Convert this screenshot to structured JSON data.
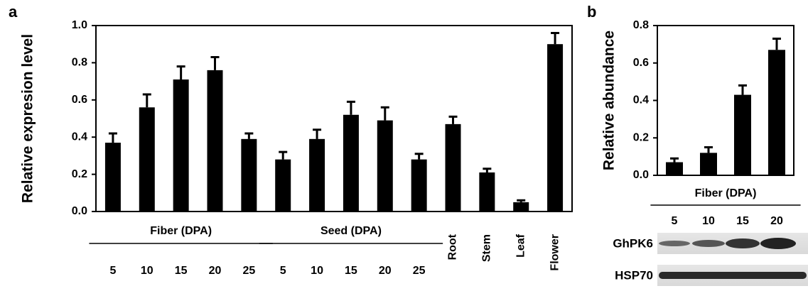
{
  "chart_data": [
    {
      "type": "bar",
      "panel": "a",
      "y_label": "Relative expresion level",
      "ylim": [
        0,
        1
      ],
      "yticks": [
        {
          "value": 0,
          "label": "0.0"
        },
        0.2,
        0.4,
        0.6,
        0.8,
        {
          "value": 1,
          "label": "1.0"
        }
      ],
      "category_groups": [
        {
          "label": "Fiber (DPA)",
          "categories": [
            "5",
            "10",
            "15",
            "20",
            "25"
          ]
        },
        {
          "label": "Seed (DPA)",
          "categories": [
            "5",
            "10",
            "15",
            "20",
            "25"
          ]
        },
        {
          "label": null,
          "categories": [
            "Root",
            "Stem",
            "Leaf",
            "Flower"
          ]
        }
      ],
      "values": [
        0.37,
        0.56,
        0.71,
        0.76,
        0.39,
        0.28,
        0.39,
        0.52,
        0.49,
        0.28,
        0.47,
        0.21,
        0.05,
        0.9
      ],
      "errors": [
        0.05,
        0.07,
        0.07,
        0.07,
        0.03,
        0.04,
        0.05,
        0.07,
        0.07,
        0.03,
        0.04,
        0.02,
        0.01,
        0.06
      ],
      "color": "#000000"
    },
    {
      "type": "bar",
      "panel": "b",
      "y_label": "Relative abundance",
      "ylim": [
        0,
        0.8
      ],
      "yticks": [
        {
          "value": 0,
          "label": "0.0"
        },
        0.2,
        0.4,
        0.6,
        0.8
      ],
      "category_groups": [
        {
          "label": "Fiber (DPA)",
          "categories": [
            "5",
            "10",
            "15",
            "20"
          ]
        }
      ],
      "values": [
        0.07,
        0.12,
        0.43,
        0.67
      ],
      "errors": [
        0.02,
        0.03,
        0.05,
        0.06
      ],
      "color": "#000000"
    }
  ],
  "blot": {
    "rows": [
      "GhPK6",
      "HSP70"
    ]
  }
}
